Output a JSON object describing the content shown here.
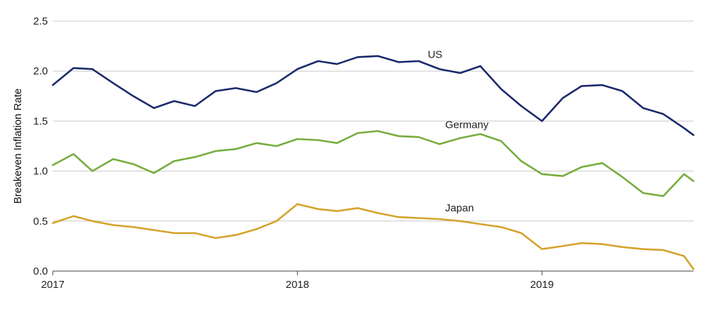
{
  "chart_data": {
    "type": "line",
    "title": "",
    "xlabel": "",
    "ylabel": "Breakeven Inflation Rate",
    "xlim": [
      "2017-01-01",
      "2019-08-15"
    ],
    "ylim": [
      0.0,
      2.5
    ],
    "grid": true,
    "legend": "inline",
    "x_ticks": [
      {
        "value": "2017-01-01",
        "label": "2017"
      },
      {
        "value": "2018-01-01",
        "label": "2018"
      },
      {
        "value": "2019-01-01",
        "label": "2019"
      }
    ],
    "y_ticks": [
      {
        "value": 0.0,
        "label": "0.0"
      },
      {
        "value": 0.5,
        "label": "0.5"
      },
      {
        "value": 1.0,
        "label": "1.0"
      },
      {
        "value": 1.5,
        "label": "1.5"
      },
      {
        "value": 2.0,
        "label": "2.0"
      },
      {
        "value": 2.5,
        "label": "2.5"
      }
    ],
    "series": [
      {
        "name": "US",
        "color": "#1c2a6b",
        "x": [
          "2017-01-01",
          "2017-02-01",
          "2017-03-01",
          "2017-04-01",
          "2017-05-01",
          "2017-06-01",
          "2017-07-01",
          "2017-08-01",
          "2017-09-01",
          "2017-10-01",
          "2017-11-01",
          "2017-12-01",
          "2018-01-01",
          "2018-02-01",
          "2018-03-01",
          "2018-04-01",
          "2018-05-01",
          "2018-06-01",
          "2018-07-01",
          "2018-08-01",
          "2018-09-01",
          "2018-10-01",
          "2018-11-01",
          "2018-12-01",
          "2019-01-01",
          "2019-02-01",
          "2019-03-01",
          "2019-04-01",
          "2019-05-01",
          "2019-06-01",
          "2019-07-01",
          "2019-08-01",
          "2019-08-15"
        ],
        "y": [
          1.86,
          2.03,
          2.02,
          1.88,
          1.75,
          1.63,
          1.7,
          1.65,
          1.8,
          1.83,
          1.79,
          1.88,
          2.02,
          2.1,
          2.07,
          2.14,
          2.15,
          2.09,
          2.1,
          2.02,
          1.98,
          2.05,
          1.82,
          1.65,
          1.5,
          1.73,
          1.85,
          1.86,
          1.8,
          1.63,
          1.57,
          1.43,
          1.36
        ]
      },
      {
        "name": "Germany",
        "color": "#77ad3e",
        "x": [
          "2017-01-01",
          "2017-02-01",
          "2017-03-01",
          "2017-04-01",
          "2017-05-01",
          "2017-06-01",
          "2017-07-01",
          "2017-08-01",
          "2017-09-01",
          "2017-10-01",
          "2017-11-01",
          "2017-12-01",
          "2018-01-01",
          "2018-02-01",
          "2018-03-01",
          "2018-04-01",
          "2018-05-01",
          "2018-06-01",
          "2018-07-01",
          "2018-08-01",
          "2018-09-01",
          "2018-10-01",
          "2018-11-01",
          "2018-12-01",
          "2019-01-01",
          "2019-02-01",
          "2019-03-01",
          "2019-04-01",
          "2019-05-01",
          "2019-06-01",
          "2019-07-01",
          "2019-08-01",
          "2019-08-15"
        ],
        "y": [
          1.06,
          1.17,
          1.0,
          1.12,
          1.07,
          0.98,
          1.1,
          1.14,
          1.2,
          1.22,
          1.28,
          1.25,
          1.32,
          1.31,
          1.28,
          1.38,
          1.4,
          1.35,
          1.34,
          1.27,
          1.33,
          1.37,
          1.3,
          1.1,
          0.97,
          0.95,
          1.04,
          1.08,
          0.94,
          0.78,
          0.75,
          0.97,
          0.9
        ]
      },
      {
        "name": "Japan",
        "color": "#d4a32c",
        "x": [
          "2017-01-01",
          "2017-02-01",
          "2017-03-01",
          "2017-04-01",
          "2017-05-01",
          "2017-06-01",
          "2017-07-01",
          "2017-08-01",
          "2017-09-01",
          "2017-10-01",
          "2017-11-01",
          "2017-12-01",
          "2018-01-01",
          "2018-02-01",
          "2018-03-01",
          "2018-04-01",
          "2018-05-01",
          "2018-06-01",
          "2018-07-01",
          "2018-08-01",
          "2018-09-01",
          "2018-10-01",
          "2018-11-01",
          "2018-12-01",
          "2019-01-01",
          "2019-02-01",
          "2019-03-01",
          "2019-04-01",
          "2019-05-01",
          "2019-06-01",
          "2019-07-01",
          "2019-08-01",
          "2019-08-15"
        ],
        "y": [
          0.48,
          0.55,
          0.5,
          0.46,
          0.44,
          0.41,
          0.38,
          0.38,
          0.33,
          0.36,
          0.42,
          0.5,
          0.67,
          0.62,
          0.6,
          0.63,
          0.58,
          0.54,
          0.53,
          0.52,
          0.5,
          0.47,
          0.44,
          0.38,
          0.22,
          0.25,
          0.28,
          0.27,
          0.24,
          0.22,
          0.21,
          0.15,
          0.02
        ]
      }
    ]
  }
}
